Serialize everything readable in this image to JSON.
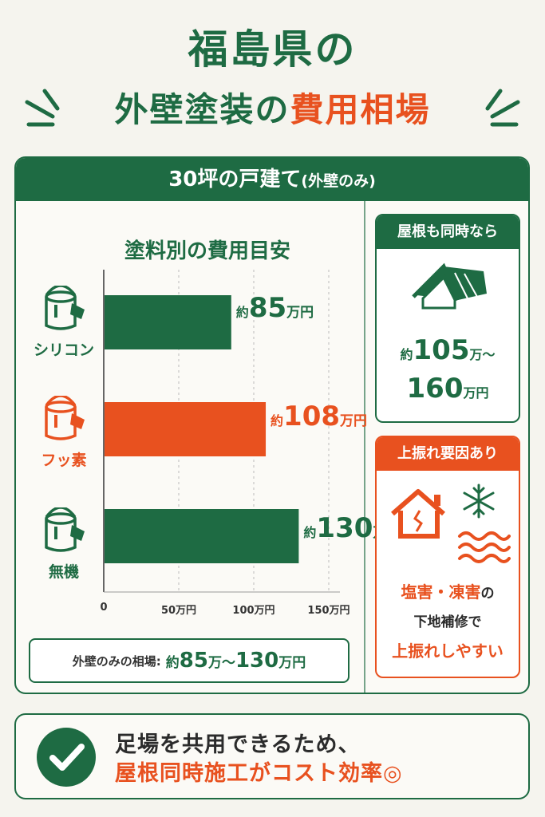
{
  "title": {
    "line1": "福島県の",
    "line2_a": "外壁塗装の",
    "line2_b": "費用相場"
  },
  "card": {
    "header_main": "30坪の戸建て",
    "header_sub": "(外壁のみ)"
  },
  "chart_data": {
    "type": "bar",
    "orientation": "horizontal",
    "title": "塗料別の費用目安",
    "categories": [
      "シリコン",
      "フッ素",
      "無機"
    ],
    "values": [
      85,
      108,
      130
    ],
    "value_labels": [
      {
        "prefix": "約",
        "num": "85",
        "unit": "万円"
      },
      {
        "prefix": "約",
        "num": "108",
        "unit": "万円"
      },
      {
        "prefix": "約",
        "num": "130",
        "unit": "万円"
      }
    ],
    "colors": [
      "#1e6b43",
      "#e8511f",
      "#1e6b43"
    ],
    "xlim": [
      0,
      150
    ],
    "xticks": [
      {
        "value": 0,
        "label": "0"
      },
      {
        "value": 50,
        "label": "50万円"
      },
      {
        "value": 100,
        "label": "100万円"
      },
      {
        "value": 150,
        "label": "150万円"
      }
    ],
    "grid": true
  },
  "summary": {
    "label": "外壁のみの相場:",
    "prefix": "約",
    "low": "85",
    "mid": "万〜",
    "high": "130",
    "unit": "万円"
  },
  "roof": {
    "header": "屋根も同時なら",
    "prefix": "約",
    "low": "105",
    "mid": "万〜",
    "high": "160",
    "unit": "万円"
  },
  "risk": {
    "header": "上振れ要因あり",
    "line1": "塩害・凍害",
    "line1_suffix": "の",
    "line2": "下地補修で",
    "line3": "上振れしやすい"
  },
  "bottom": {
    "line1": "足場を共用できるため、",
    "line2": "屋根同時施工がコスト効率◎"
  },
  "colors": {
    "green": "#1e6b43",
    "orange": "#e8511f",
    "background": "#f5f4ee"
  }
}
